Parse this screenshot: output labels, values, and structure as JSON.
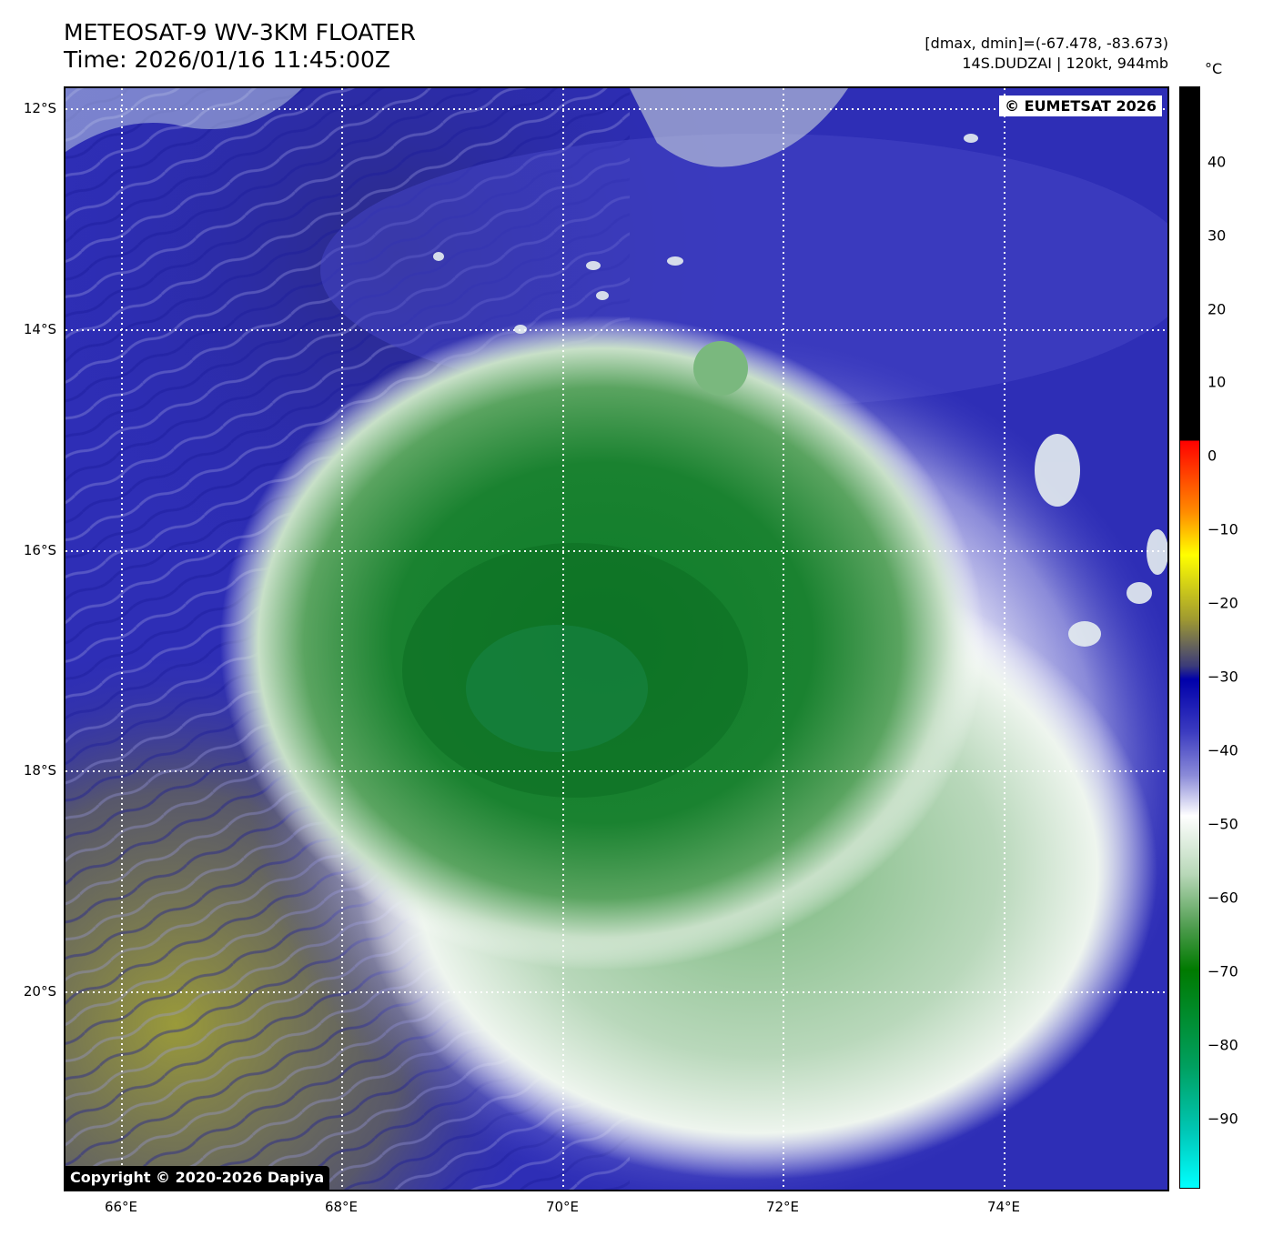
{
  "header": {
    "title_line1": "METEOSAT-9 WV-3KM FLOATER",
    "title_line2": "Time: 2026/01/16 11:45:00Z",
    "info_line1": "[dmax, dmin]=(-67.478, -83.673)",
    "info_line2": "14S.DUDZAI | 120kt, 944mb"
  },
  "badges": {
    "eumetsat": "© EUMETSAT 2026",
    "copyright": "Copyright © 2020-2026 Dapiya"
  },
  "axes": {
    "lat_labels": [
      "12°S",
      "14°S",
      "16°S",
      "18°S",
      "20°S"
    ],
    "lon_labels": [
      "66°E",
      "68°E",
      "70°E",
      "72°E",
      "74°E"
    ]
  },
  "colorbar": {
    "unit": "°C",
    "ticks": [
      "40",
      "30",
      "20",
      "10",
      "0",
      "−10",
      "−20",
      "−30",
      "−40",
      "−50",
      "−60",
      "−70",
      "−80",
      "−90"
    ]
  },
  "colors": {
    "background_blue": "#2a2ab4",
    "cold_green": "#0a7a1a",
    "cloud_white": "#f2f6f2",
    "warm_olive": "#8a8a3a",
    "grid": "#ffffff"
  }
}
